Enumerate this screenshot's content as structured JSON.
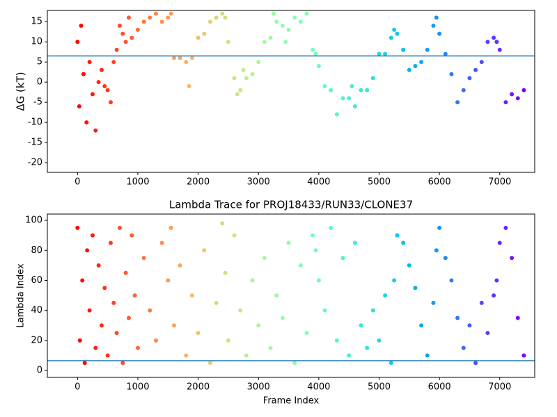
{
  "chart_data": [
    {
      "type": "scatter",
      "ylabel": "ΔG (kT)",
      "x": [
        0,
        30,
        60,
        100,
        150,
        200,
        250,
        300,
        350,
        400,
        450,
        500,
        550,
        600,
        650,
        700,
        750,
        800,
        850,
        900,
        1000,
        1100,
        1200,
        1300,
        1400,
        1500,
        1550,
        1600,
        1700,
        1800,
        1850,
        1900,
        2000,
        2100,
        2200,
        2300,
        2400,
        2450,
        2500,
        2600,
        2650,
        2700,
        2750,
        2800,
        2900,
        3000,
        3100,
        3200,
        3250,
        3300,
        3400,
        3450,
        3500,
        3600,
        3700,
        3800,
        3900,
        3950,
        4000,
        4100,
        4200,
        4300,
        4400,
        4500,
        4550,
        4600,
        4700,
        4800,
        4900,
        5000,
        5100,
        5200,
        5250,
        5300,
        5400,
        5500,
        5600,
        5700,
        5800,
        5900,
        5950,
        6000,
        6100,
        6200,
        6300,
        6400,
        6500,
        6600,
        6700,
        6800,
        6900,
        6950,
        7000,
        7100,
        7200,
        7300,
        7400
      ],
      "values": [
        10,
        -6,
        14,
        2,
        -10,
        5,
        -3,
        -12,
        0,
        3,
        -1,
        -2,
        -5,
        5,
        8,
        14,
        12,
        10,
        16,
        11,
        13,
        15,
        16,
        17,
        15,
        16,
        17,
        6,
        6,
        5,
        -1,
        6,
        11,
        12,
        15,
        16,
        17,
        16,
        10,
        1,
        -3,
        -2,
        3,
        1,
        2,
        5,
        10,
        11,
        17,
        15,
        14,
        10,
        13,
        16,
        15,
        17,
        8,
        7,
        4,
        -1,
        -2,
        -8,
        -4,
        -4,
        -1,
        -6,
        -2,
        -2,
        1,
        7,
        7,
        11,
        13,
        12,
        8,
        3,
        4,
        5,
        8,
        14,
        16,
        12,
        7,
        2,
        -5,
        -2,
        1,
        3,
        5,
        10,
        11,
        10,
        8,
        -5,
        -3,
        -4,
        -2
      ],
      "colormap": "rainbow_r",
      "hline": 6.5,
      "hline_color": "#1f77b4",
      "xlim": [
        -500,
        7580
      ],
      "xticks": [
        0,
        1000,
        2000,
        3000,
        4000,
        5000,
        6000,
        7000
      ],
      "ylim": [
        -22.4,
        17.8
      ],
      "yticks": [
        -20,
        -15,
        -10,
        -5,
        0,
        5,
        10,
        15
      ]
    },
    {
      "type": "scatter",
      "title": "Lambda Trace for PROJ18433/RUN33/CLONE37",
      "xlabel": "Frame Index",
      "ylabel": "Lambda Index",
      "x": [
        0,
        40,
        80,
        120,
        160,
        200,
        250,
        300,
        350,
        400,
        450,
        500,
        550,
        600,
        650,
        700,
        750,
        800,
        850,
        900,
        950,
        1000,
        1100,
        1200,
        1300,
        1400,
        1500,
        1550,
        1600,
        1700,
        1800,
        1900,
        2000,
        2100,
        2200,
        2300,
        2400,
        2450,
        2500,
        2600,
        2700,
        2800,
        2900,
        3000,
        3100,
        3200,
        3300,
        3400,
        3500,
        3600,
        3700,
        3800,
        3900,
        3950,
        4000,
        4100,
        4200,
        4300,
        4400,
        4500,
        4600,
        4700,
        4800,
        4900,
        5000,
        5100,
        5200,
        5250,
        5300,
        5400,
        5500,
        5600,
        5700,
        5800,
        5900,
        5950,
        6000,
        6100,
        6200,
        6300,
        6400,
        6500,
        6600,
        6700,
        6800,
        6900,
        6950,
        7000,
        7100,
        7200,
        7300,
        7400
      ],
      "values": [
        95,
        20,
        60,
        5,
        80,
        40,
        90,
        15,
        70,
        30,
        55,
        10,
        85,
        45,
        25,
        95,
        5,
        65,
        35,
        90,
        50,
        15,
        75,
        40,
        20,
        85,
        60,
        95,
        30,
        70,
        10,
        50,
        25,
        80,
        5,
        45,
        98,
        65,
        20,
        90,
        40,
        10,
        60,
        30,
        75,
        15,
        50,
        35,
        85,
        5,
        70,
        25,
        90,
        80,
        60,
        40,
        95,
        20,
        75,
        10,
        85,
        30,
        15,
        40,
        20,
        50,
        5,
        60,
        90,
        85,
        70,
        55,
        30,
        10,
        45,
        80,
        95,
        75,
        60,
        35,
        15,
        30,
        5,
        45,
        25,
        50,
        60,
        85,
        95,
        75,
        35,
        10
      ],
      "colormap": "rainbow_r",
      "hline": 6.5,
      "hline_color": "#1f77b4",
      "xlim": [
        -500,
        7580
      ],
      "xticks": [
        0,
        1000,
        2000,
        3000,
        4000,
        5000,
        6000,
        7000
      ],
      "ylim": [
        -4.6,
        104.2
      ],
      "yticks": [
        0,
        20,
        40,
        60,
        80,
        100
      ]
    }
  ]
}
